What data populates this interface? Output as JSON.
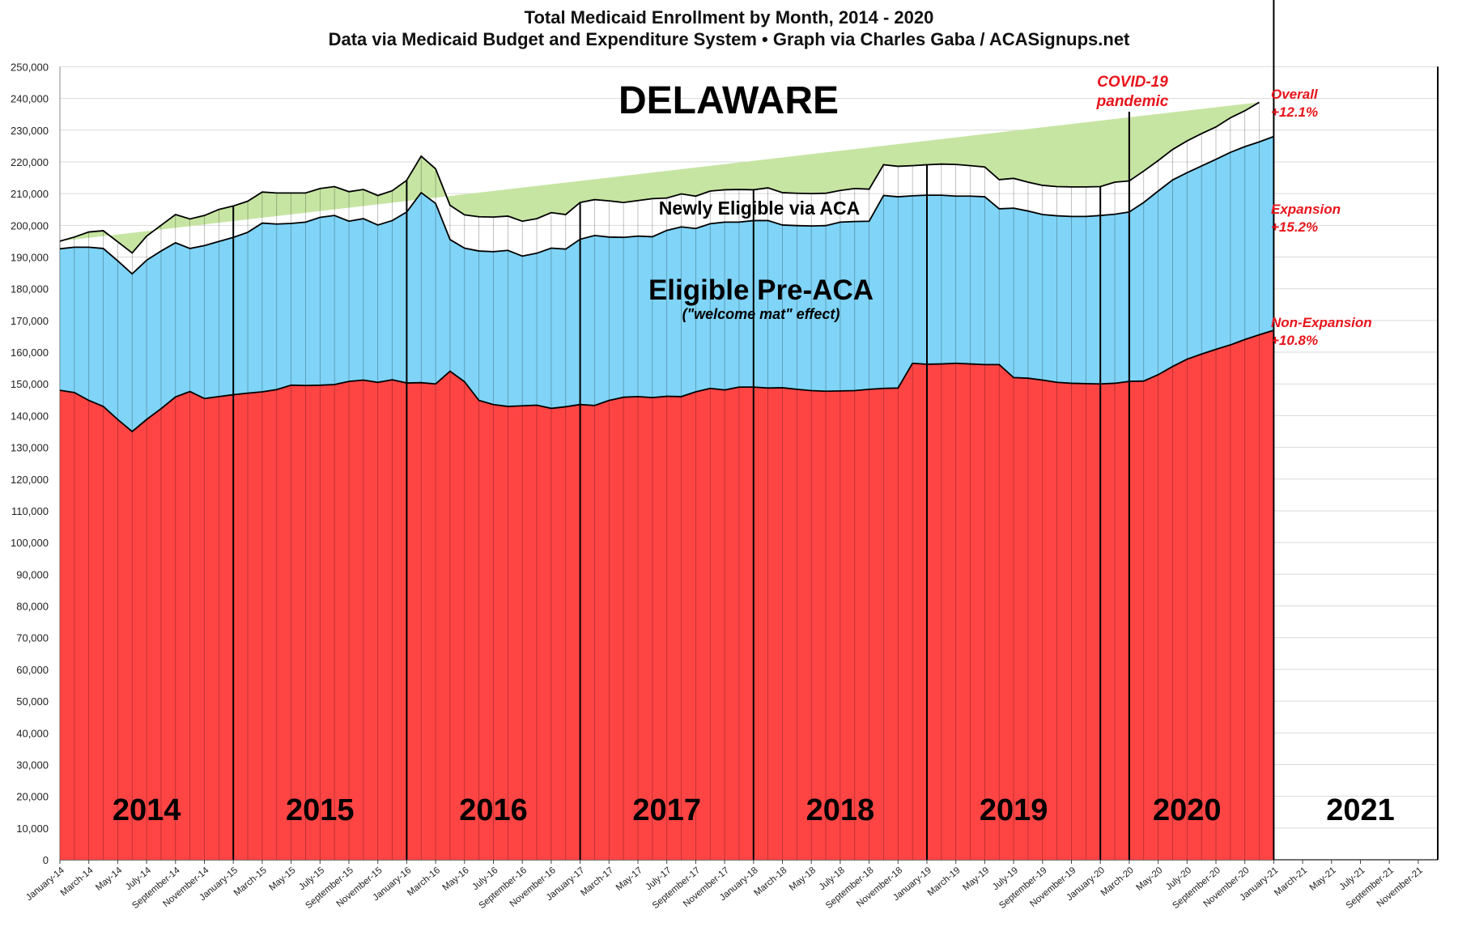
{
  "titles": {
    "line1": "Total Medicaid Enrollment by Month, 2014 - 2020",
    "line2": "Data via Medicaid Budget and Expenditure System  •  Graph via Charles Gaba / ACASignups.net"
  },
  "colors": {
    "non_expansion": "#ff4444",
    "pre_aca": "#7fd4f7",
    "newly_eligible": "#c6e5a2",
    "annotation": "#e8141c"
  },
  "chart_data": {
    "type": "area",
    "stacked": true,
    "state": "DELAWARE",
    "ylim": [
      0,
      250000
    ],
    "y_ticks": [
      "0",
      "10,000",
      "20,000",
      "30,000",
      "40,000",
      "50,000",
      "60,000",
      "70,000",
      "80,000",
      "90,000",
      "100,000",
      "110,000",
      "120,000",
      "130,000",
      "140,000",
      "150,000",
      "160,000",
      "170,000",
      "180,000",
      "190,000",
      "200,000",
      "210,000",
      "220,000",
      "230,000",
      "240,000",
      "250,000"
    ],
    "x_tick_labels": [
      "January-14",
      "March-14",
      "May-14",
      "July-14",
      "September-14",
      "November-14",
      "January-15",
      "March-15",
      "May-15",
      "July-15",
      "September-15",
      "November-15",
      "January-16",
      "March-16",
      "May-16",
      "July-16",
      "September-16",
      "November-16",
      "January-17",
      "March-17",
      "May-17",
      "July-17",
      "September-17",
      "November-17",
      "January-18",
      "March-18",
      "May-18",
      "July-18",
      "September-18",
      "November-18",
      "January-19",
      "March-19",
      "May-19",
      "July-19",
      "September-19",
      "November-19",
      "January-20",
      "March-20",
      "May-20",
      "July-20",
      "September-20",
      "November-20",
      "January-21",
      "March-21",
      "May-21",
      "July-21",
      "September-21",
      "November-21"
    ],
    "year_labels": [
      "2014",
      "2015",
      "2016",
      "2017",
      "2018",
      "2019",
      "2020",
      "2021"
    ],
    "series": [
      {
        "name": "Non-Expansion",
        "total": [
          148000,
          147300,
          144800,
          142900,
          138800,
          135000,
          138800,
          142200,
          145900,
          147600,
          145400,
          146000,
          146600,
          147100,
          147500,
          148200,
          149600,
          149500,
          149600,
          149800,
          150800,
          151200,
          150500,
          151300,
          150300,
          150400,
          150000,
          154000,
          150700,
          144800,
          143500,
          142900,
          143100,
          143300,
          142300,
          142800,
          143500,
          143200,
          144800,
          145800,
          146000,
          145700,
          146100,
          146000,
          147500,
          148600,
          148100,
          149000,
          149000,
          148700,
          148800,
          148300,
          147900,
          147700,
          147800,
          147900,
          148300,
          148600,
          148700,
          156500,
          156200,
          156300,
          156500,
          156300,
          156100,
          156100,
          152000,
          151800,
          151200,
          150500,
          150200,
          150100,
          150000,
          150200,
          150800,
          150900,
          152900,
          155500,
          157800,
          159400,
          160900,
          162300,
          164000,
          165500,
          166900
        ]
      },
      {
        "name": "Eligible Pre-ACA",
        "total": [
          192600,
          193100,
          193100,
          192700,
          188800,
          184700,
          189000,
          191900,
          194500,
          192700,
          193600,
          194900,
          196200,
          197800,
          200700,
          200400,
          200600,
          201000,
          202500,
          203100,
          201300,
          202100,
          200100,
          201500,
          204200,
          210300,
          206900,
          195500,
          192800,
          191900,
          191700,
          192100,
          190300,
          191200,
          192800,
          192500,
          195600,
          196800,
          196300,
          196200,
          196600,
          196400,
          198400,
          199500,
          199000,
          200500,
          201000,
          201000,
          201500,
          201500,
          200100,
          199900,
          199800,
          199900,
          201000,
          201200,
          201300,
          209400,
          209000,
          209300,
          209500,
          209500,
          209200,
          209200,
          209000,
          205200,
          205400,
          204500,
          203400,
          203000,
          202800,
          202800,
          203100,
          203500,
          204200,
          207200,
          210800,
          214300,
          216600,
          218700,
          220800,
          223000,
          224800,
          226300,
          228000
        ]
      },
      {
        "name": "Newly Eligible via ACA",
        "total": [
          195000,
          196300,
          197900,
          198300,
          194800,
          191300,
          196600,
          200000,
          203400,
          202000,
          203100,
          205000,
          206100,
          207600,
          210500,
          210200,
          210200,
          210200,
          211600,
          212200,
          210600,
          211300,
          209400,
          210900,
          214200,
          221800,
          217800,
          206300,
          203300,
          202700,
          202600,
          202900,
          201300,
          202100,
          204000,
          203400,
          207200,
          208100,
          207700,
          207200,
          207800,
          208400,
          208600,
          209900,
          209200,
          210800,
          211200,
          211300,
          211200,
          211800,
          210300,
          210100,
          210000,
          210100,
          211000,
          211600,
          211400,
          219100,
          218600,
          218800,
          219100,
          219300,
          219200,
          218800,
          218400,
          214400,
          214800,
          213600,
          212600,
          212200,
          212100,
          212100,
          212200,
          213600,
          214000,
          217100,
          220400,
          223900,
          226600,
          228900,
          231000,
          233900,
          236100,
          238800
        ]
      }
    ],
    "annotations": {
      "covid_line1": "COVID-19",
      "covid_line2": "pandemic",
      "overall_label": "Overall",
      "overall_pct": "+12.1%",
      "expansion_label": "Expansion",
      "expansion_pct": "+15.2%",
      "nonexp_label": "Non-Expansion",
      "nonexp_pct": "+10.8%",
      "newly_eligible_label": "Newly Eligible via ACA",
      "pre_aca_label": "Eligible Pre-ACA",
      "pre_aca_sub": "(\"welcome mat\" effect)"
    }
  }
}
